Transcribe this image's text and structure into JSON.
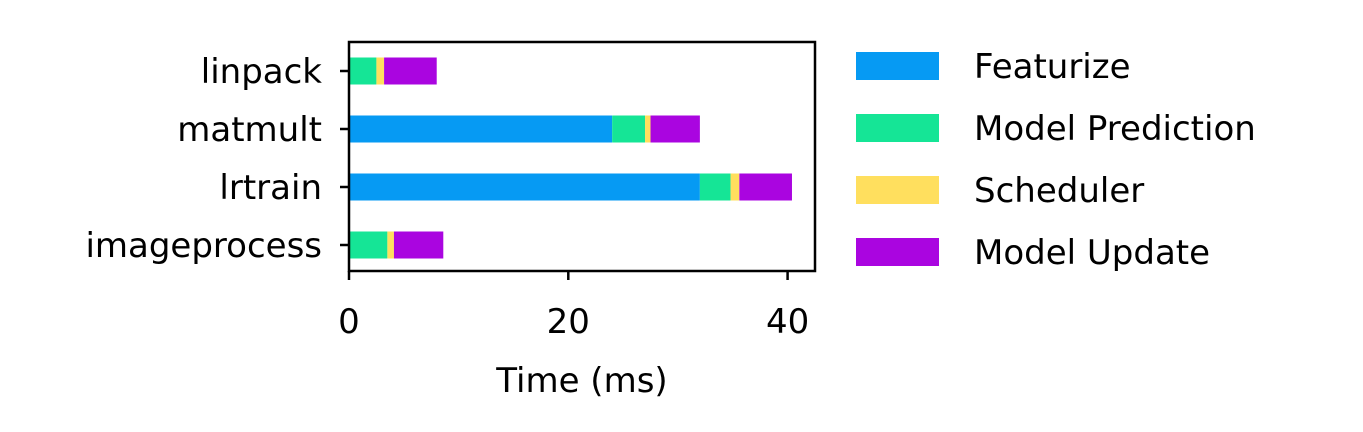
{
  "chart_data": {
    "type": "bar",
    "orientation": "horizontal",
    "stacked": true,
    "title": "",
    "xlabel": "Time (ms)",
    "ylabel": "",
    "xlim": [
      0,
      42.5
    ],
    "xticks": [
      0,
      20,
      40
    ],
    "grid": false,
    "legend_position": "right-outside",
    "categories": [
      "linpack",
      "matmult",
      "lrtrain",
      "imageprocess"
    ],
    "series": [
      {
        "name": "Featurize",
        "color": "#069AF3",
        "values": [
          0.0,
          24.0,
          32.0,
          0.0
        ]
      },
      {
        "name": "Model Prediction",
        "color": "#15E596",
        "values": [
          2.5,
          3.0,
          2.8,
          3.5
        ]
      },
      {
        "name": "Scheduler",
        "color": "#FFDF5E",
        "values": [
          0.7,
          0.5,
          0.8,
          0.6
        ]
      },
      {
        "name": "Model Update",
        "color": "#AA05E0",
        "values": [
          4.8,
          4.5,
          4.8,
          4.5
        ]
      }
    ]
  }
}
